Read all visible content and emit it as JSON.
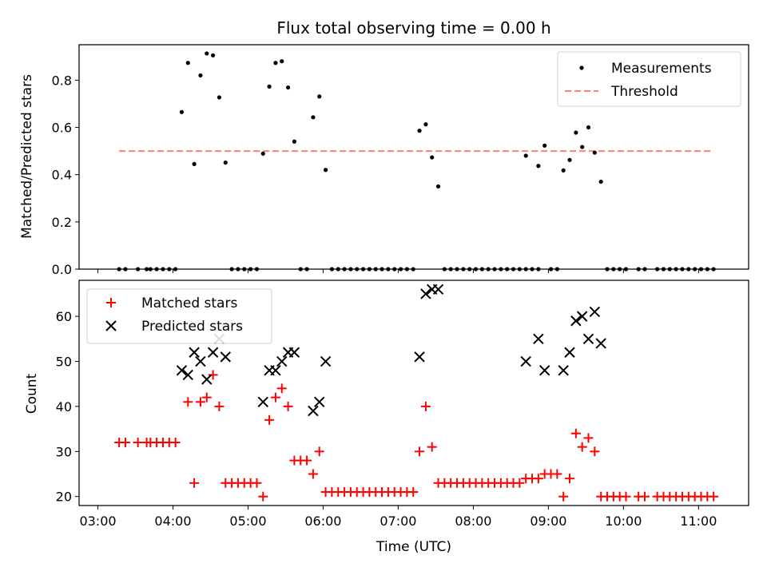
{
  "chart_data": [
    {
      "type": "scatter",
      "title": "Flux total observing time = 0.00 h",
      "xlabel": "",
      "ylabel": "Matched/Predicted stars",
      "xlim": [
        "02:45",
        "11:40"
      ],
      "ylim": [
        0,
        0.95
      ],
      "yticks": [
        0.0,
        0.2,
        0.4,
        0.6,
        0.8
      ],
      "ytick_labels": [
        "0.0",
        "0.2",
        "0.4",
        "0.6",
        "0.8"
      ],
      "legend_position": "upper-right",
      "series": [
        {
          "name": "Measurements",
          "kind": "scatter",
          "marker": "dot",
          "color": "#000000",
          "points": [
            [
              "03:17",
              0
            ],
            [
              "03:22",
              0
            ],
            [
              "03:32",
              0
            ],
            [
              "03:39",
              0
            ],
            [
              "03:42",
              0
            ],
            [
              "03:47",
              0
            ],
            [
              "03:52",
              0
            ],
            [
              "03:57",
              0
            ],
            [
              "04:02",
              0
            ],
            [
              "04:07",
              0.665
            ],
            [
              "04:12",
              0.873
            ],
            [
              "04:17",
              0.445
            ],
            [
              "04:22",
              0.82
            ],
            [
              "04:27",
              0.913
            ],
            [
              "04:32",
              0.905
            ],
            [
              "04:37",
              0.727
            ],
            [
              "04:42",
              0.451
            ],
            [
              "04:47",
              0
            ],
            [
              "04:52",
              0
            ],
            [
              "04:57",
              0
            ],
            [
              "05:02",
              0
            ],
            [
              "05:07",
              0
            ],
            [
              "05:12",
              0.489
            ],
            [
              "05:17",
              0.773
            ],
            [
              "05:22",
              0.873
            ],
            [
              "05:27",
              0.88
            ],
            [
              "05:32",
              0.769
            ],
            [
              "05:37",
              0.54
            ],
            [
              "05:42",
              0
            ],
            [
              "05:47",
              0
            ],
            [
              "05:52",
              0.643
            ],
            [
              "05:57",
              0.731
            ],
            [
              "06:02",
              0.42
            ],
            [
              "06:07",
              0
            ],
            [
              "06:12",
              0
            ],
            [
              "06:17",
              0
            ],
            [
              "06:22",
              0
            ],
            [
              "06:27",
              0
            ],
            [
              "06:32",
              0
            ],
            [
              "06:37",
              0
            ],
            [
              "06:42",
              0
            ],
            [
              "06:47",
              0
            ],
            [
              "06:52",
              0
            ],
            [
              "06:57",
              0
            ],
            [
              "07:02",
              0
            ],
            [
              "07:07",
              0
            ],
            [
              "07:12",
              0
            ],
            [
              "07:17",
              0.586
            ],
            [
              "07:22",
              0.613
            ],
            [
              "07:27",
              0.473
            ],
            [
              "07:32",
              0.35
            ],
            [
              "07:37",
              0
            ],
            [
              "07:42",
              0
            ],
            [
              "07:47",
              0
            ],
            [
              "07:52",
              0
            ],
            [
              "07:57",
              0
            ],
            [
              "08:02",
              0
            ],
            [
              "08:07",
              0
            ],
            [
              "08:12",
              0
            ],
            [
              "08:17",
              0
            ],
            [
              "08:22",
              0
            ],
            [
              "08:27",
              0
            ],
            [
              "08:32",
              0
            ],
            [
              "08:37",
              0
            ],
            [
              "08:42",
              0
            ],
            [
              "08:47",
              0
            ],
            [
              "08:52",
              0
            ],
            [
              "08:42",
              0.48
            ],
            [
              "08:52",
              0.437
            ],
            [
              "08:57",
              0.523
            ],
            [
              "09:02",
              0
            ],
            [
              "09:07",
              0
            ],
            [
              "09:12",
              0.418
            ],
            [
              "09:17",
              0.462
            ],
            [
              "09:22",
              0.578
            ],
            [
              "09:27",
              0.517
            ],
            [
              "09:32",
              0.6
            ],
            [
              "09:37",
              0.493
            ],
            [
              "09:42",
              0.37
            ],
            [
              "09:47",
              0
            ],
            [
              "09:52",
              0
            ],
            [
              "09:57",
              0
            ],
            [
              "10:02",
              0
            ],
            [
              "10:12",
              0
            ],
            [
              "10:17",
              0
            ],
            [
              "10:27",
              0
            ],
            [
              "10:32",
              0
            ],
            [
              "10:37",
              0
            ],
            [
              "10:42",
              0
            ],
            [
              "10:47",
              0
            ],
            [
              "10:52",
              0
            ],
            [
              "10:57",
              0
            ],
            [
              "11:02",
              0
            ],
            [
              "11:07",
              0
            ],
            [
              "11:12",
              0
            ]
          ]
        },
        {
          "name": "Threshold",
          "kind": "line",
          "style": "dashed",
          "color": "#ff7f7f",
          "points": [
            [
              "03:17",
              0.5
            ],
            [
              "11:12",
              0.5
            ]
          ]
        }
      ]
    },
    {
      "type": "scatter",
      "title": "",
      "xlabel": "Time (UTC)",
      "ylabel": "Count",
      "xlim": [
        "02:45",
        "11:40"
      ],
      "ylim": [
        18,
        68
      ],
      "xticks": [
        "03:00",
        "04:00",
        "05:00",
        "06:00",
        "07:00",
        "08:00",
        "09:00",
        "10:00",
        "11:00"
      ],
      "yticks": [
        20,
        30,
        40,
        50,
        60
      ],
      "ytick_labels": [
        "20",
        "30",
        "40",
        "50",
        "60"
      ],
      "legend_position": "upper-left",
      "series": [
        {
          "name": "Matched stars",
          "kind": "scatter",
          "marker": "plus",
          "color": "#ff0000",
          "points": [
            [
              "03:17",
              32
            ],
            [
              "03:22",
              32
            ],
            [
              "03:32",
              32
            ],
            [
              "03:39",
              32
            ],
            [
              "03:42",
              32
            ],
            [
              "03:47",
              32
            ],
            [
              "03:52",
              32
            ],
            [
              "03:57",
              32
            ],
            [
              "04:02",
              32
            ],
            [
              "04:12",
              41
            ],
            [
              "04:17",
              23
            ],
            [
              "04:22",
              41
            ],
            [
              "04:27",
              42
            ],
            [
              "04:32",
              47
            ],
            [
              "04:37",
              40
            ],
            [
              "04:42",
              23
            ],
            [
              "04:47",
              23
            ],
            [
              "04:52",
              23
            ],
            [
              "04:57",
              23
            ],
            [
              "05:02",
              23
            ],
            [
              "05:07",
              23
            ],
            [
              "05:12",
              20
            ],
            [
              "05:17",
              37
            ],
            [
              "05:22",
              42
            ],
            [
              "05:27",
              44
            ],
            [
              "05:32",
              40
            ],
            [
              "05:37",
              28
            ],
            [
              "05:42",
              28
            ],
            [
              "05:47",
              28
            ],
            [
              "05:52",
              25
            ],
            [
              "05:57",
              30
            ],
            [
              "06:02",
              21
            ],
            [
              "06:07",
              21
            ],
            [
              "06:12",
              21
            ],
            [
              "06:17",
              21
            ],
            [
              "06:22",
              21
            ],
            [
              "06:27",
              21
            ],
            [
              "06:32",
              21
            ],
            [
              "06:37",
              21
            ],
            [
              "06:42",
              21
            ],
            [
              "06:47",
              21
            ],
            [
              "06:52",
              21
            ],
            [
              "06:57",
              21
            ],
            [
              "07:02",
              21
            ],
            [
              "07:07",
              21
            ],
            [
              "07:12",
              21
            ],
            [
              "07:17",
              30
            ],
            [
              "07:22",
              40
            ],
            [
              "07:27",
              31
            ],
            [
              "07:32",
              23
            ],
            [
              "07:37",
              23
            ],
            [
              "07:42",
              23
            ],
            [
              "07:47",
              23
            ],
            [
              "07:52",
              23
            ],
            [
              "07:57",
              23
            ],
            [
              "08:02",
              23
            ],
            [
              "08:07",
              23
            ],
            [
              "08:12",
              23
            ],
            [
              "08:17",
              23
            ],
            [
              "08:22",
              23
            ],
            [
              "08:27",
              23
            ],
            [
              "08:32",
              23
            ],
            [
              "08:37",
              23
            ],
            [
              "08:42",
              24
            ],
            [
              "08:47",
              24
            ],
            [
              "08:52",
              24
            ],
            [
              "08:57",
              25
            ],
            [
              "09:02",
              25
            ],
            [
              "09:07",
              25
            ],
            [
              "09:12",
              20
            ],
            [
              "09:17",
              24
            ],
            [
              "09:22",
              34
            ],
            [
              "09:27",
              31
            ],
            [
              "09:32",
              33
            ],
            [
              "09:37",
              30
            ],
            [
              "09:42",
              20
            ],
            [
              "09:47",
              20
            ],
            [
              "09:52",
              20
            ],
            [
              "09:57",
              20
            ],
            [
              "10:02",
              20
            ],
            [
              "10:12",
              20
            ],
            [
              "10:17",
              20
            ],
            [
              "10:27",
              20
            ],
            [
              "10:32",
              20
            ],
            [
              "10:37",
              20
            ],
            [
              "10:42",
              20
            ],
            [
              "10:47",
              20
            ],
            [
              "10:52",
              20
            ],
            [
              "10:57",
              20
            ],
            [
              "11:02",
              20
            ],
            [
              "11:07",
              20
            ],
            [
              "11:12",
              20
            ]
          ]
        },
        {
          "name": "Predicted stars",
          "kind": "scatter",
          "marker": "x",
          "color": "#000000",
          "points": [
            [
              "04:07",
              48
            ],
            [
              "04:12",
              47
            ],
            [
              "04:17",
              52
            ],
            [
              "04:22",
              50
            ],
            [
              "04:27",
              46
            ],
            [
              "04:32",
              52
            ],
            [
              "04:37",
              55
            ],
            [
              "04:42",
              51
            ],
            [
              "05:12",
              41
            ],
            [
              "05:17",
              48
            ],
            [
              "05:22",
              48
            ],
            [
              "05:27",
              50
            ],
            [
              "05:32",
              52
            ],
            [
              "05:37",
              52
            ],
            [
              "05:52",
              39
            ],
            [
              "05:57",
              41
            ],
            [
              "06:02",
              50
            ],
            [
              "07:17",
              51
            ],
            [
              "07:22",
              65
            ],
            [
              "07:27",
              66
            ],
            [
              "07:32",
              66
            ],
            [
              "08:42",
              50
            ],
            [
              "08:52",
              55
            ],
            [
              "08:57",
              48
            ],
            [
              "09:12",
              48
            ],
            [
              "09:17",
              52
            ],
            [
              "09:22",
              59
            ],
            [
              "09:27",
              60
            ],
            [
              "09:32",
              55
            ],
            [
              "09:37",
              61
            ],
            [
              "09:42",
              54
            ]
          ]
        }
      ]
    }
  ]
}
